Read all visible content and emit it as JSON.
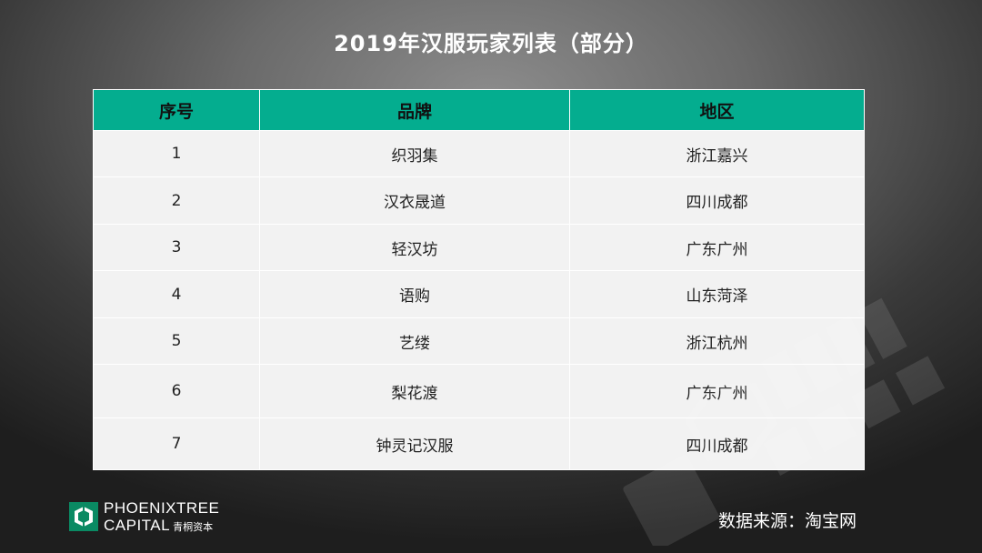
{
  "title": "2019年汉服玩家列表（部分）",
  "table": {
    "headers": [
      "序号",
      "品牌",
      "地区"
    ],
    "rows": [
      [
        "1",
        "织羽集",
        "浙江嘉兴"
      ],
      [
        "2",
        "汉衣晟道",
        "四川成都"
      ],
      [
        "3",
        "轻汉坊",
        "广东广州"
      ],
      [
        "4",
        "语购",
        "山东菏泽"
      ],
      [
        "5",
        "艺缕",
        "浙江杭州"
      ],
      [
        "6",
        "梨花渡",
        "广东广州"
      ],
      [
        "7",
        "钟灵记汉服",
        "四川成都"
      ]
    ]
  },
  "logo": {
    "line1": "PHOENIXTREE",
    "line2": "CAPITAL",
    "cn": "青桐资本",
    "icon": "phoenixtree-logo-icon"
  },
  "source": "数据来源：淘宝网",
  "colors": {
    "header_bg": "#04ad8f",
    "row_bg": "#f2f2f2",
    "brand_green": "#0a8a63"
  }
}
